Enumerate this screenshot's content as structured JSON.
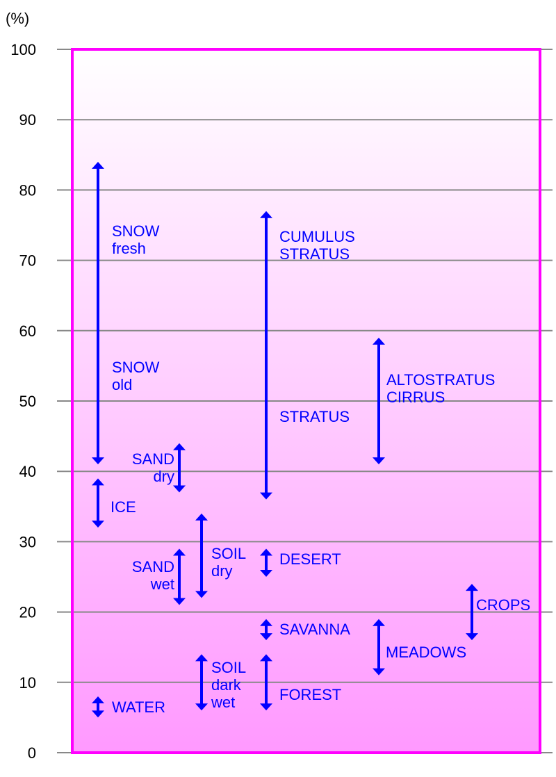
{
  "chart_data": {
    "type": "range",
    "ylabel": "(%)",
    "ylim": [
      0,
      100
    ],
    "yticks": [
      0,
      10,
      20,
      30,
      40,
      50,
      60,
      70,
      80,
      90,
      100
    ],
    "grid": true,
    "colors": {
      "frame": "#ff00ff",
      "fill_top": "#ffffff",
      "fill_bottom": "#ff99ff",
      "arrows": "#0000ff",
      "grid": "#888888"
    },
    "ranges": [
      {
        "labels": [
          [
            "SNOW",
            "fresh"
          ],
          [
            "SNOW",
            "old"
          ]
        ],
        "low": 41,
        "high": 84
      },
      {
        "labels": [
          [
            "ICE"
          ]
        ],
        "low": 32,
        "high": 39
      },
      {
        "labels": [
          [
            "SAND",
            "dry"
          ]
        ],
        "low": 37,
        "high": 44
      },
      {
        "labels": [
          [
            "SAND",
            "wet"
          ]
        ],
        "low": 21,
        "high": 29
      },
      {
        "labels": [
          [
            "SOIL",
            "dry"
          ]
        ],
        "low": 22,
        "high": 34
      },
      {
        "labels": [
          [
            "SOIL",
            "dark",
            "wet"
          ]
        ],
        "low": 6,
        "high": 14
      },
      {
        "labels": [
          [
            "WATER"
          ]
        ],
        "low": 5,
        "high": 8
      },
      {
        "labels": [
          [
            "CUMULUS",
            "STRATUS"
          ],
          [
            "STRATUS"
          ]
        ],
        "low": 36,
        "high": 77
      },
      {
        "labels": [
          [
            "DESERT"
          ]
        ],
        "low": 25,
        "high": 29
      },
      {
        "labels": [
          [
            "SAVANNA"
          ]
        ],
        "low": 16,
        "high": 19
      },
      {
        "labels": [
          [
            "FOREST"
          ]
        ],
        "low": 6,
        "high": 14
      },
      {
        "labels": [
          [
            "ALTOSTRATUS",
            "CIRRUS"
          ]
        ],
        "low": 41,
        "high": 59
      },
      {
        "labels": [
          [
            "MEADOWS"
          ]
        ],
        "low": 11,
        "high": 19
      },
      {
        "labels": [
          [
            "CROPS"
          ]
        ],
        "low": 16,
        "high": 24
      }
    ]
  }
}
